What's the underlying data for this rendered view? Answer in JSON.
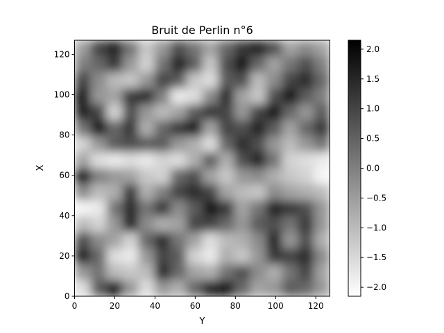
{
  "chart_data": {
    "type": "heatmap",
    "title": "Bruit de Perlin n°6",
    "xlabel": "Y",
    "ylabel": "X",
    "colormap": "gray_r",
    "grid": false,
    "xlim": [
      0,
      127
    ],
    "ylim": [
      127,
      0
    ],
    "x_ticks": [
      0,
      20,
      40,
      60,
      80,
      100,
      120
    ],
    "y_ticks": [
      0,
      20,
      40,
      60,
      80,
      100,
      120
    ],
    "x_tick_labels": [
      "0",
      "20",
      "40",
      "60",
      "80",
      "100",
      "120"
    ],
    "y_tick_labels": [
      "0",
      "20",
      "40",
      "60",
      "80",
      "100",
      "120"
    ],
    "colorbar": {
      "range": [
        -2.15,
        2.15
      ],
      "ticks": [
        2.0,
        1.5,
        1.0,
        0.5,
        0.0,
        -0.5,
        -1.0,
        -1.5,
        -2.0
      ],
      "tick_labels": [
        "2.0",
        "1.5",
        "1.0",
        "0.5",
        "0.0",
        "−0.5",
        "−1.0",
        "−1.5",
        "−2.0"
      ]
    },
    "grid_rows": 16,
    "grid_cols": 16,
    "values": [
      [
        -0.5,
        1.0,
        1.6,
        0.2,
        -1.2,
        -0.4,
        0.8,
        0.2,
        -0.6,
        0.4,
        1.2,
        1.6,
        0.8,
        -0.6,
        -0.2,
        -0.6
      ],
      [
        0.0,
        0.4,
        1.2,
        -0.4,
        -1.4,
        0.2,
        1.6,
        0.6,
        -1.2,
        0.8,
        1.8,
        0.4,
        -0.6,
        0.2,
        0.8,
        0.0
      ],
      [
        1.0,
        -0.2,
        -1.0,
        -1.2,
        -0.4,
        1.0,
        0.6,
        -1.2,
        -1.6,
        0.6,
        0.8,
        -1.0,
        -0.2,
        1.0,
        1.4,
        0.4
      ],
      [
        1.8,
        -0.4,
        -0.6,
        1.2,
        1.4,
        0.0,
        -1.8,
        -1.6,
        -0.2,
        1.4,
        -0.6,
        -1.2,
        0.8,
        1.8,
        0.6,
        0.0
      ],
      [
        1.6,
        1.0,
        -1.4,
        0.8,
        -0.4,
        -1.0,
        -0.6,
        0.6,
        1.2,
        1.0,
        -0.4,
        1.0,
        1.8,
        0.4,
        -0.4,
        0.6
      ],
      [
        0.2,
        1.8,
        0.4,
        1.2,
        -0.8,
        0.4,
        1.2,
        1.8,
        -0.6,
        1.0,
        0.8,
        1.6,
        0.6,
        -0.6,
        0.4,
        1.2
      ],
      [
        -1.4,
        -0.4,
        0.6,
        0.8,
        0.6,
        0.6,
        -0.4,
        -0.8,
        -1.6,
        0.4,
        1.4,
        0.8,
        -0.4,
        -1.0,
        -0.4,
        0.2
      ],
      [
        -0.6,
        -1.6,
        -1.8,
        -1.6,
        -1.8,
        -1.4,
        -1.6,
        -0.8,
        0.6,
        -0.8,
        0.8,
        1.6,
        0.2,
        -1.4,
        -1.6,
        -1.8
      ],
      [
        1.8,
        0.0,
        -0.4,
        -0.6,
        -1.2,
        -1.4,
        0.4,
        0.8,
        -0.6,
        -1.2,
        -0.4,
        -0.2,
        -0.8,
        -1.2,
        -1.4,
        -2.0
      ],
      [
        -0.2,
        -1.0,
        -0.8,
        1.2,
        -0.8,
        0.0,
        1.0,
        1.4,
        1.0,
        -0.6,
        -1.0,
        -1.2,
        -0.2,
        -0.6,
        -0.8,
        -1.0
      ],
      [
        -2.0,
        -1.8,
        0.2,
        1.4,
        0.2,
        1.2,
        -0.2,
        0.6,
        1.8,
        1.2,
        -0.6,
        0.2,
        1.6,
        1.2,
        0.8,
        -0.4
      ],
      [
        -1.0,
        -1.4,
        -0.4,
        1.6,
        -0.2,
        -0.8,
        -0.6,
        1.0,
        1.0,
        0.4,
        -0.4,
        0.6,
        0.8,
        0.2,
        1.2,
        -0.4
      ],
      [
        0.8,
        -0.2,
        -0.6,
        -1.4,
        0.4,
        1.4,
        0.2,
        -0.6,
        -1.6,
        -1.0,
        -0.8,
        -0.2,
        1.6,
        -0.4,
        0.8,
        -0.8
      ],
      [
        1.6,
        0.4,
        -1.6,
        -1.8,
        -0.4,
        1.0,
        0.6,
        -1.4,
        -1.8,
        -0.8,
        -1.2,
        -0.4,
        1.2,
        1.0,
        1.4,
        -0.2
      ],
      [
        -0.4,
        0.2,
        -1.0,
        -1.2,
        -1.0,
        1.4,
        0.4,
        -0.6,
        -0.8,
        0.2,
        0.8,
        -0.2,
        -0.8,
        0.2,
        1.0,
        -0.6
      ],
      [
        -1.6,
        0.6,
        1.8,
        -0.4,
        -1.6,
        -0.4,
        -0.8,
        0.4,
        1.6,
        1.8,
        0.4,
        -0.6,
        -0.4,
        0.6,
        0.4,
        -0.4
      ]
    ]
  }
}
